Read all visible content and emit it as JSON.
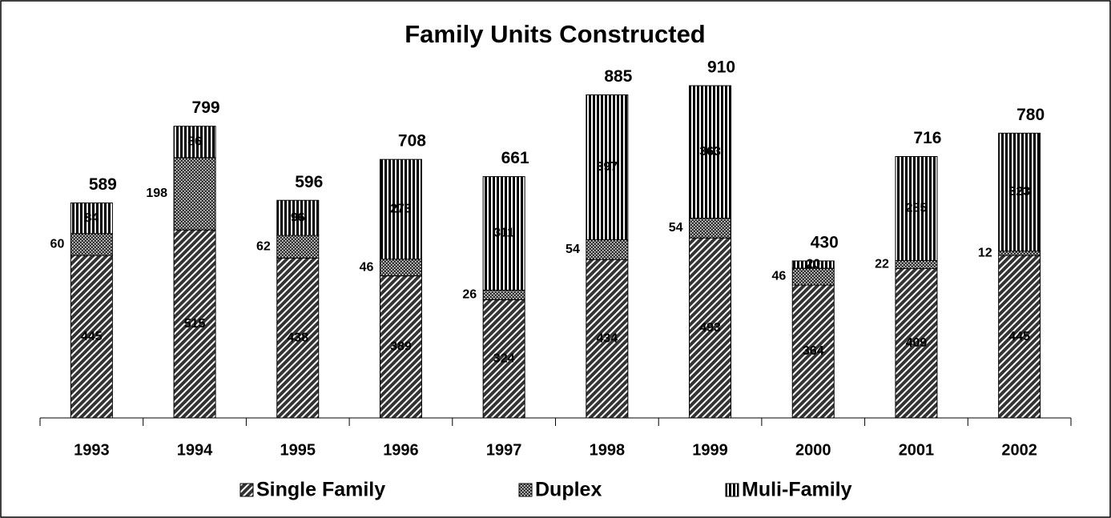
{
  "chart_data": {
    "type": "stacked-bar",
    "title": "Family Units Constructed",
    "categories": [
      "1993",
      "1994",
      "1995",
      "1996",
      "1997",
      "1998",
      "1999",
      "2000",
      "2001",
      "2002"
    ],
    "series": [
      {
        "name": "Single Family",
        "color": "#333333",
        "pattern": "diagonal",
        "values": [
          445,
          515,
          438,
          389,
          324,
          434,
          493,
          364,
          409,
          445
        ]
      },
      {
        "name": "Duplex",
        "color": "#333333",
        "pattern": "dots",
        "values": [
          60,
          198,
          62,
          46,
          26,
          54,
          54,
          46,
          22,
          12
        ]
      },
      {
        "name": "Muli-Family",
        "color": "#000000",
        "pattern": "vertical",
        "values": [
          84,
          86,
          96,
          273,
          311,
          397,
          363,
          20,
          285,
          323
        ]
      }
    ],
    "totals": [
      589,
      799,
      596,
      708,
      661,
      885,
      910,
      430,
      716,
      780
    ],
    "ylim": [
      0,
      1000
    ],
    "legend": "bottom"
  }
}
